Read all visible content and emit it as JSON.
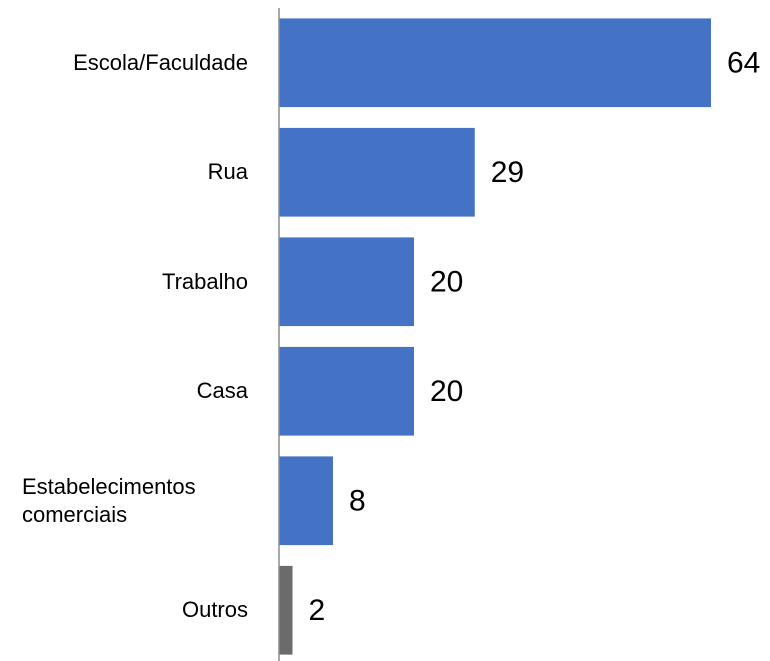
{
  "chart_data": {
    "type": "barh",
    "categories": [
      "Escola/Faculdade",
      "Rua",
      "Trabalho",
      "Casa",
      "Estabelecimentos comerciais",
      "Outros"
    ],
    "values": [
      64,
      29,
      20,
      20,
      8,
      2
    ],
    "colors": [
      "#4472c4",
      "#4472c4",
      "#4472c4",
      "#4472c4",
      "#4472c4",
      "#6b6b6b"
    ],
    "xlim": [
      0,
      70
    ]
  }
}
